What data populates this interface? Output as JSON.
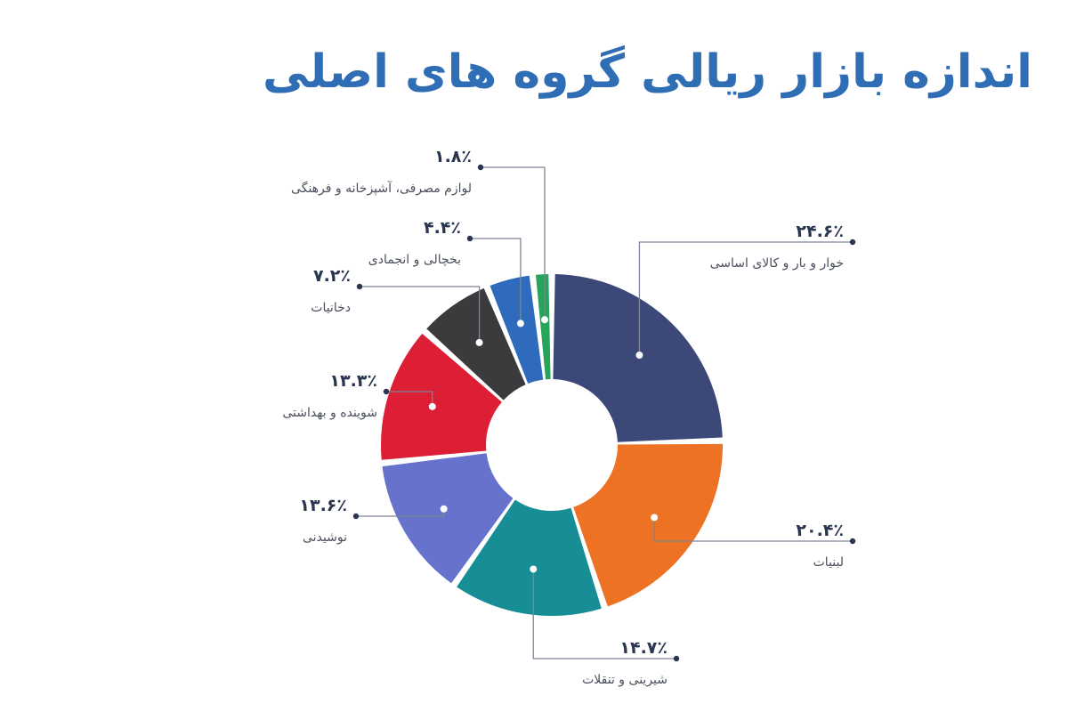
{
  "title": "اندازه بازار ریالی گروه های اصلی",
  "chart_data": {
    "type": "pie",
    "variant": "donut",
    "title": "اندازه بازار ریالی گروه های اصلی",
    "unit": "%",
    "slices": [
      {
        "label": "خوار و بار و کالای اساسی",
        "value": 24.6,
        "display": "۲۴.۶٪",
        "color": "#3c4878"
      },
      {
        "label": "لبنیات",
        "value": 20.4,
        "display": "۲۰.۴٪",
        "color": "#ed7223"
      },
      {
        "label": "شیرینی و تنقلات",
        "value": 14.7,
        "display": "۱۴.۷٪",
        "color": "#178e95"
      },
      {
        "label": "نوشیدنی",
        "value": 13.6,
        "display": "۱۳.۶٪",
        "color": "#6672cc"
      },
      {
        "label": "شوینده و بهداشتی",
        "value": 13.3,
        "display": "۱۳.۳٪",
        "color": "#dc1f35"
      },
      {
        "label": "دخانیات",
        "value": 7.2,
        "display": "۷.۲٪",
        "color": "#3b3b3d"
      },
      {
        "label": "بخچالی و انجمادی",
        "value": 4.4,
        "display": "۴.۴٪",
        "color": "#2f6bbd"
      },
      {
        "label": "لوازم مصرفی، آشپزخانه و فرهنگی",
        "value": 1.8,
        "display": "۱.۸٪",
        "color": "#27a35a"
      }
    ]
  }
}
